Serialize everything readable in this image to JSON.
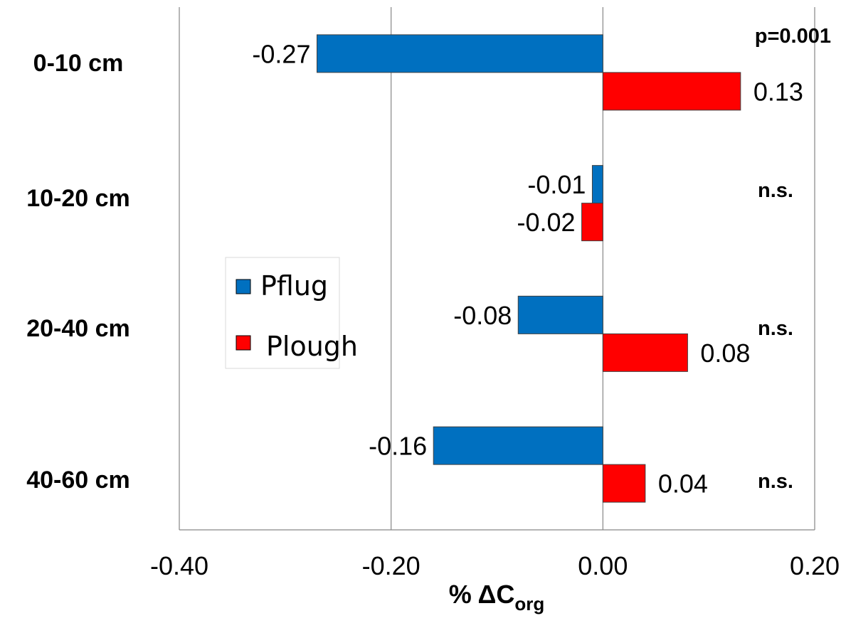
{
  "chart_data": {
    "type": "bar",
    "orientation": "horizontal",
    "categories": [
      "0-10 cm",
      "10-20 cm",
      "20-40 cm",
      "40-60 cm"
    ],
    "series": [
      {
        "name": "Pflug",
        "color": "#0070C0",
        "values": [
          -0.27,
          -0.01,
          -0.08,
          -0.16
        ],
        "labels": [
          "-0.27",
          "-0.01",
          "-0.08",
          "-0.16"
        ]
      },
      {
        "name": "Plough",
        "color": "#FF0000",
        "values": [
          0.13,
          -0.02,
          0.08,
          0.04
        ],
        "labels": [
          "0.13",
          "-0.02",
          "0.08",
          "0.04"
        ]
      }
    ],
    "significance": [
      "p=0.001",
      "n.s.",
      "n.s.",
      "n.s."
    ],
    "xlim": [
      -0.4,
      0.2
    ],
    "xticks": [
      -0.4,
      -0.2,
      0.0,
      0.2
    ],
    "xtick_labels": [
      "-0.40",
      "-0.20",
      "0.00",
      "0.20"
    ],
    "xlabel": {
      "main": "% ΔC",
      "subscript": "org"
    },
    "grid": "vertical",
    "legend_position": "center-left"
  }
}
